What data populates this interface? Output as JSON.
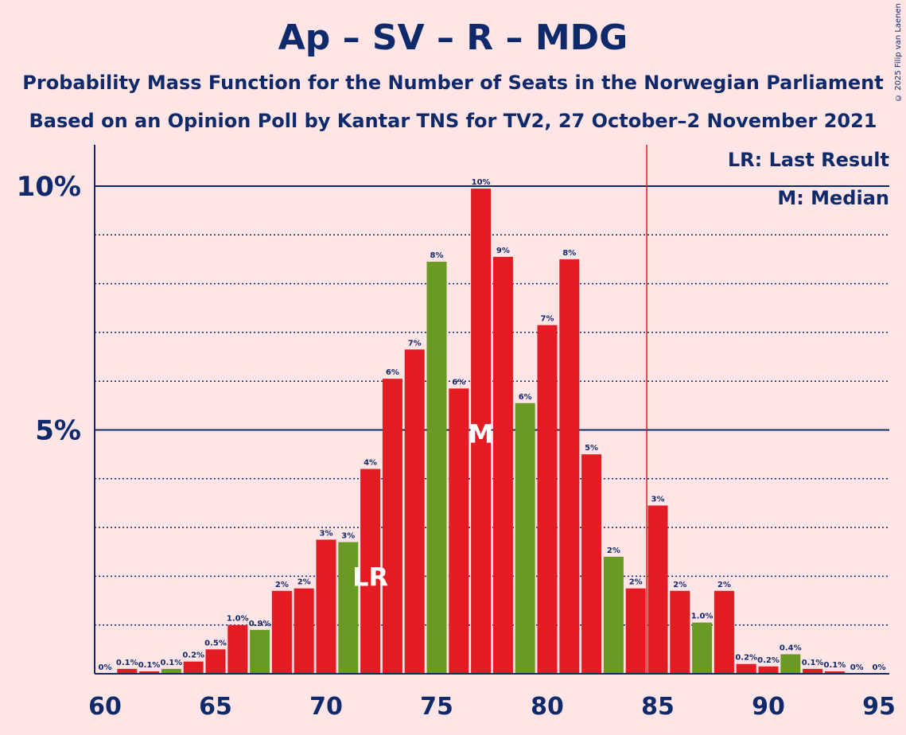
{
  "title": "Ap – SV – R – MDG",
  "subtitle1": "Probability Mass Function for the Number of Seats in the Norwegian Parliament",
  "subtitle2": "Based on an Opinion Poll by Kantar TNS for TV2, 27 October–2 November 2021",
  "copyright": "© 2025 Filip van Laenen",
  "legend": {
    "lr": "LR: Last Result",
    "median": "M: Median"
  },
  "colors": {
    "background": "#FFE5E5",
    "text": "#0F2A6B",
    "red_bar": "#E31B23",
    "green_bar": "#6A9A23",
    "majority_line": "#E31B23"
  },
  "chart_data": {
    "type": "bar",
    "x": [
      60,
      61,
      62,
      63,
      64,
      65,
      66,
      67,
      68,
      69,
      70,
      71,
      72,
      73,
      74,
      75,
      76,
      77,
      78,
      79,
      80,
      81,
      82,
      83,
      84,
      85,
      86,
      87,
      88,
      89,
      90,
      91,
      92,
      93,
      94,
      95
    ],
    "values": [
      0,
      0.1,
      0.05,
      0.1,
      0.25,
      0.5,
      1.0,
      0.9,
      1.7,
      1.75,
      2.75,
      2.7,
      4.2,
      6.05,
      6.65,
      8.45,
      5.85,
      9.95,
      8.55,
      5.55,
      7.15,
      8.5,
      4.5,
      2.4,
      1.75,
      3.45,
      1.7,
      1.05,
      1.7,
      0.2,
      0.15,
      0.4,
      0.1,
      0.05,
      0,
      0
    ],
    "labels": [
      "0%",
      "0.1%",
      "0.1%",
      "0.1%",
      "0.2%",
      "0.5%",
      "1.0%",
      "0.9%",
      "2%",
      "2%",
      "3%",
      "3%",
      "4%",
      "6%",
      "7%",
      "8%",
      "6%",
      "10%",
      "9%",
      "6%",
      "7%",
      "8%",
      "5%",
      "2%",
      "2%",
      "3%",
      "2%",
      "1.0%",
      "2%",
      "0.2%",
      "0.2%",
      "0.4%",
      "0.1%",
      "0.1%",
      "0%",
      "0%"
    ],
    "colors": [
      "red",
      "red",
      "red",
      "green",
      "red",
      "red",
      "red",
      "green",
      "red",
      "red",
      "red",
      "green",
      "red",
      "red",
      "red",
      "green",
      "red",
      "red",
      "red",
      "green",
      "red",
      "red",
      "red",
      "green",
      "red",
      "red",
      "red",
      "green",
      "red",
      "red",
      "red",
      "green",
      "red",
      "red",
      "red",
      "red"
    ],
    "xlim": [
      60,
      95
    ],
    "ylim": [
      0,
      11
    ],
    "xticks": [
      {
        "value": 60,
        "label": "60"
      },
      {
        "value": 65,
        "label": "65"
      },
      {
        "value": 70,
        "label": "70"
      },
      {
        "value": 75,
        "label": "75"
      },
      {
        "value": 80,
        "label": "80"
      },
      {
        "value": 85,
        "label": "85"
      },
      {
        "value": 90,
        "label": "90"
      },
      {
        "value": 95,
        "label": "95"
      }
    ],
    "yticks": [
      {
        "value": 5,
        "label": "5%"
      },
      {
        "value": 10,
        "label": "10%"
      }
    ],
    "dotted_gridlines": [
      1,
      2,
      3,
      4,
      6,
      7,
      8,
      9
    ],
    "majority_line_x": 84.5,
    "last_result_x": 72,
    "last_result_label": "LR",
    "median_x": 77,
    "median_label": "M"
  }
}
